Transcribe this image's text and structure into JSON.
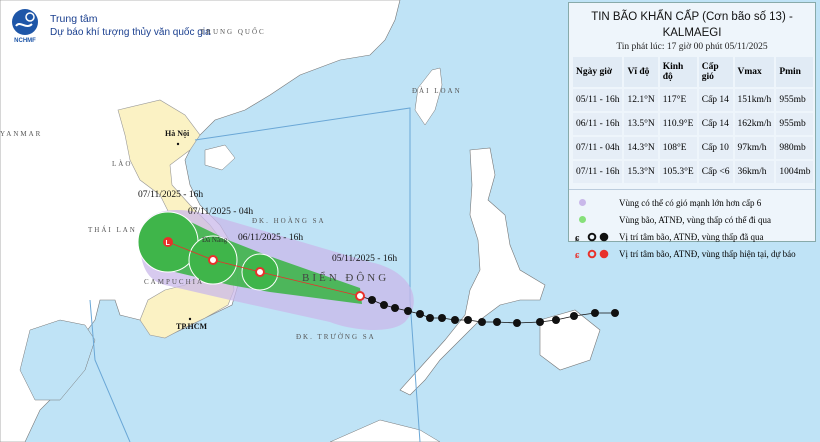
{
  "header": {
    "org_line1": "Trung tâm",
    "org_line2": "Dự báo khí tượng thủy văn quốc gia",
    "logo_text": "NCHMF"
  },
  "map_labels": {
    "china": "TRUNG QUỐC",
    "myanmar": "YANMAR",
    "laos": "LÀO",
    "thailand": "THÁI LAN",
    "cambodia": "CAMPUCHIA",
    "hanoi": "Hà Nội",
    "hcm": "TP.HCM",
    "danang": "Đà Nẵng",
    "taiwan": "ĐÀI LOAN",
    "south_china_sea": "BIỂN ĐÔNG",
    "paracel": "ĐK. HOÀNG SA",
    "spratly": "ĐK. TRƯỜNG SA"
  },
  "track_labels": [
    "05/11/2025 - 16h",
    "06/11/2025 - 16h",
    "07/11/2025 - 04h",
    "07/11/2025 - 16h"
  ],
  "panel": {
    "title_line1": "TIN BÃO KHẨN CẤP (Cơn bão số 13) -",
    "title_line2": "KALMAEGI",
    "issued": "Tin phát lúc: 17 giờ 00 phút 05/11/2025",
    "columns": [
      "Ngày giờ",
      "Vĩ độ",
      "Kinh độ",
      "Cấp gió",
      "Vmax",
      "Pmin"
    ],
    "rows": [
      [
        "05/11 - 16h",
        "12.1°N",
        "117°E",
        "Cấp 14",
        "151km/h",
        "955mb"
      ],
      [
        "06/11 - 16h",
        "13.5°N",
        "110.9°E",
        "Cấp 14",
        "162km/h",
        "955mb"
      ],
      [
        "07/11 - 04h",
        "14.3°N",
        "108°E",
        "Cấp 10",
        "97km/h",
        "980mb"
      ],
      [
        "07/11 - 16h",
        "15.3°N",
        "105.3°E",
        "Cấp <6",
        "36km/h",
        "1004mb"
      ]
    ],
    "legend": [
      {
        "text": "Vùng có thể có gió mạnh lớn hơn cấp 6",
        "icon": "purple-dot",
        "color": "#c9b8ea"
      },
      {
        "text": "Vùng bão, ATNĐ, vùng thấp có thể đi qua",
        "icon": "green-dot",
        "color": "#86e07a"
      },
      {
        "text": "Vị trí tâm bão, ATNĐ, vùng thấp đã qua",
        "icon": "black-storm-symbols",
        "color": "#111111"
      },
      {
        "text": "Vị trí tâm bão, ATNĐ, vùng thấp hiện tại, dự báo",
        "icon": "red-storm-symbols",
        "color": "#e8312b"
      }
    ]
  },
  "colors": {
    "sea": "#bfe3f6",
    "vietnam": "#fbf2c4",
    "danger_zone": "#c9b8ea",
    "cone": "#3fb54a",
    "forecast": "#e8312b"
  }
}
